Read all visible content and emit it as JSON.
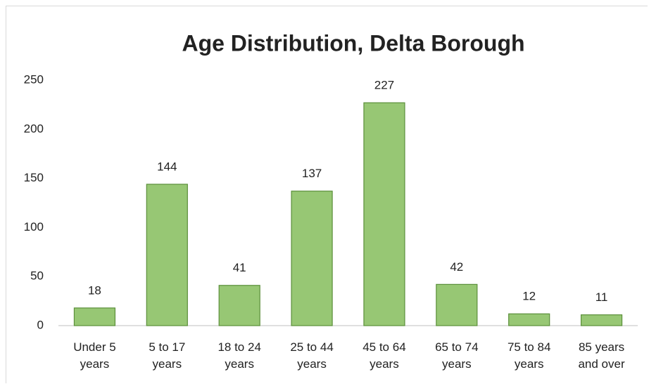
{
  "chart_data": {
    "type": "bar",
    "title": "Age Distribution, Delta Borough",
    "categories": [
      "Under 5 years",
      "5 to 17 years",
      "18 to 24 years",
      "25 to 44 years",
      "45 to 64 years",
      "65 to 74 years",
      "75 to 84 years",
      "85 years and over"
    ],
    "values": [
      18,
      144,
      41,
      137,
      227,
      42,
      12,
      11
    ],
    "color": "#97c774",
    "ylim": [
      0,
      250
    ],
    "yticks": [
      0,
      50,
      100,
      150,
      200,
      250
    ],
    "grid": false
  }
}
